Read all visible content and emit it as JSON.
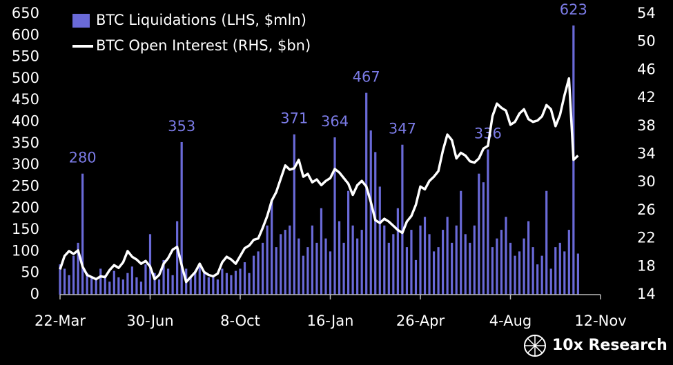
{
  "chart_data": {
    "type": "bar",
    "categories": [
      "22-Mar",
      null,
      null,
      null,
      null,
      null,
      null,
      null,
      null,
      null,
      null,
      null,
      null,
      null,
      null,
      null,
      null,
      null,
      null,
      null,
      "30-Jun",
      null,
      null,
      null,
      null,
      null,
      null,
      null,
      null,
      null,
      null,
      null,
      null,
      null,
      null,
      null,
      null,
      null,
      null,
      null,
      "8-Oct",
      null,
      null,
      null,
      null,
      null,
      null,
      null,
      null,
      null,
      null,
      null,
      null,
      null,
      null,
      null,
      null,
      null,
      null,
      null,
      "16-Jan",
      null,
      null,
      null,
      null,
      null,
      null,
      null,
      null,
      null,
      null,
      null,
      null,
      null,
      null,
      null,
      null,
      null,
      null,
      null,
      "26-Apr",
      null,
      null,
      null,
      null,
      null,
      null,
      null,
      null,
      null,
      null,
      null,
      null,
      null,
      null,
      null,
      null,
      null,
      null,
      null,
      "4-Aug",
      null,
      null,
      null,
      null,
      null,
      null,
      null,
      null,
      null,
      null,
      null,
      null,
      null,
      null,
      null,
      null,
      null,
      null,
      null,
      "12-Nov"
    ],
    "series": [
      {
        "name": "BTC Liquidations (LHS, $mln)",
        "type": "bar",
        "color": "#6a6ad8",
        "values": [
          70,
          60,
          45,
          90,
          120,
          280,
          50,
          40,
          35,
          60,
          45,
          30,
          55,
          40,
          35,
          50,
          65,
          40,
          30,
          70,
          140,
          50,
          35,
          80,
          60,
          45,
          170,
          353,
          60,
          40,
          55,
          70,
          50,
          40,
          45,
          35,
          60,
          50,
          45,
          55,
          60,
          75,
          50,
          90,
          100,
          120,
          160,
          220,
          110,
          140,
          150,
          160,
          371,
          130,
          90,
          110,
          160,
          120,
          200,
          130,
          100,
          364,
          170,
          120,
          240,
          160,
          130,
          150,
          467,
          380,
          330,
          250,
          160,
          120,
          140,
          200,
          347,
          110,
          150,
          80,
          160,
          180,
          140,
          100,
          110,
          150,
          180,
          120,
          160,
          240,
          140,
          120,
          160,
          280,
          260,
          336,
          110,
          130,
          150,
          180,
          120,
          90,
          100,
          130,
          170,
          110,
          70,
          90,
          240,
          60,
          110,
          120,
          100,
          150,
          623,
          95,
          null,
          null,
          null,
          null,
          null
        ],
        "value_labels": [
          null,
          null,
          null,
          null,
          null,
          "280",
          null,
          null,
          null,
          null,
          null,
          null,
          null,
          null,
          null,
          null,
          null,
          null,
          null,
          null,
          null,
          null,
          null,
          null,
          null,
          null,
          null,
          "353",
          null,
          null,
          null,
          null,
          null,
          null,
          null,
          null,
          null,
          null,
          null,
          null,
          null,
          null,
          null,
          null,
          null,
          null,
          null,
          null,
          null,
          null,
          null,
          null,
          "371",
          null,
          null,
          null,
          null,
          null,
          null,
          null,
          null,
          "364",
          null,
          null,
          null,
          null,
          null,
          null,
          "467",
          null,
          null,
          null,
          null,
          null,
          null,
          null,
          "347",
          null,
          null,
          null,
          null,
          null,
          null,
          null,
          null,
          null,
          null,
          null,
          null,
          null,
          null,
          null,
          null,
          null,
          null,
          "336",
          null,
          null,
          null,
          null,
          null,
          null,
          null,
          null,
          null,
          null,
          null,
          null,
          null,
          null,
          null,
          null,
          null,
          null,
          "623",
          null,
          null,
          null,
          null,
          null,
          null
        ]
      },
      {
        "name": "BTC Open Interest (RHS, $bn)",
        "type": "line",
        "axis": "y2",
        "color": "#ffffff",
        "values": [
          17.6,
          19.5,
          20.2,
          19.8,
          20.3,
          18.0,
          16.8,
          16.5,
          16.2,
          16.6,
          16.5,
          17.5,
          18.2,
          17.8,
          18.6,
          20.2,
          19.4,
          19.0,
          18.4,
          18.8,
          18.0,
          16.2,
          16.8,
          18.4,
          19.2,
          20.4,
          20.8,
          18.2,
          15.8,
          16.5,
          17.2,
          18.4,
          17.2,
          16.8,
          16.6,
          17.0,
          18.6,
          19.4,
          19.0,
          18.4,
          19.5,
          20.6,
          21.0,
          21.8,
          22.0,
          23.5,
          25.2,
          27.4,
          28.6,
          30.5,
          32.4,
          31.8,
          32.0,
          33.2,
          30.8,
          31.2,
          30.0,
          30.4,
          29.6,
          30.2,
          30.6,
          31.9,
          31.4,
          30.6,
          29.8,
          28.2,
          29.6,
          30.2,
          29.4,
          27.2,
          24.6,
          24.2,
          24.8,
          24.4,
          23.8,
          23.2,
          22.8,
          24.4,
          25.2,
          26.8,
          29.4,
          29.0,
          30.2,
          30.8,
          31.6,
          34.5,
          36.8,
          36.0,
          33.4,
          34.2,
          33.8,
          33.0,
          32.8,
          33.4,
          34.8,
          35.2,
          39.4,
          41.2,
          40.6,
          40.2,
          38.2,
          38.6,
          39.8,
          40.4,
          39.0,
          38.6,
          38.8,
          39.4,
          41.0,
          40.4,
          38.0,
          39.6,
          42.4,
          44.8,
          33.2,
          33.8,
          null,
          null,
          null,
          null,
          null
        ]
      }
    ],
    "ylim": [
      0,
      650
    ],
    "yticks": [
      0,
      50,
      100,
      150,
      200,
      250,
      300,
      350,
      400,
      450,
      500,
      550,
      600,
      650
    ],
    "y2lim": [
      14,
      54
    ],
    "y2ticks": [
      14,
      18,
      22,
      26,
      30,
      34,
      38,
      42,
      46,
      50,
      54
    ],
    "legend": "upper left",
    "source": "10x Research"
  }
}
